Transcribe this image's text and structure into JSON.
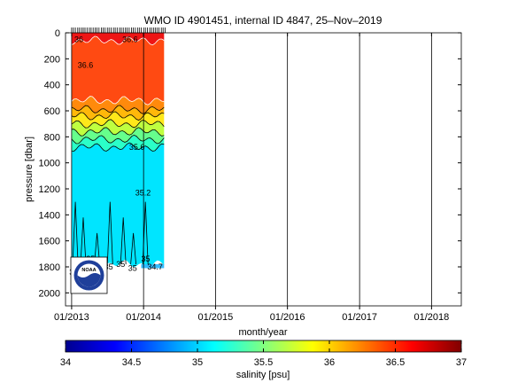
{
  "chart_data": {
    "type": "heatmap",
    "title": "WMO ID 4901451, internal ID 4847, 25–Nov–2019",
    "xlabel": "month/year",
    "ylabel": "pressure [dbar]",
    "x_ticks": [
      "01/2013",
      "01/2014",
      "01/2015",
      "01/2016",
      "01/2017",
      "01/2018"
    ],
    "x_range": [
      "2012-12-01",
      "2018-06-01"
    ],
    "y_ticks": [
      0,
      200,
      400,
      600,
      800,
      1000,
      1200,
      1400,
      1600,
      1800,
      2000
    ],
    "y_range": [
      0,
      2100
    ],
    "y_reversed": true,
    "profile_dates": [
      "2013-01",
      "2013-02",
      "2013-03",
      "2013-04",
      "2013-05",
      "2013-06",
      "2013-07",
      "2013-08",
      "2013-09",
      "2013-10",
      "2013-11",
      "2013-12",
      "2014-01",
      "2014-02",
      "2014-03",
      "2014-04"
    ],
    "grid": true,
    "colorbar": {
      "label": "salinity [psu]",
      "min": 34,
      "max": 37,
      "ticks": [
        34,
        34.5,
        35,
        35.5,
        36,
        36.5,
        37
      ],
      "colors": [
        "#00008f",
        "#0000ff",
        "#0080ff",
        "#00ffff",
        "#80ff80",
        "#ffff00",
        "#ff8000",
        "#ff0000",
        "#800000"
      ]
    },
    "salinity_bands": [
      {
        "label": ">36.6",
        "pressure_range": [
          0,
          60
        ],
        "color": "#ee1515"
      },
      {
        "label": "36.4–36.6",
        "pressure_range": [
          60,
          520
        ],
        "color": "#ff4a12"
      },
      {
        "label": "36.2–36.4",
        "pressure_range": [
          520,
          590
        ],
        "color": "#ff8a0c"
      },
      {
        "label": "36.0–36.2",
        "pressure_range": [
          590,
          640
        ],
        "color": "#ffb80a"
      },
      {
        "label": "35.8–36.0",
        "pressure_range": [
          640,
          700
        ],
        "color": "#ffe81a"
      },
      {
        "label": "35.6–35.8",
        "pressure_range": [
          700,
          760
        ],
        "color": "#bfff40"
      },
      {
        "label": "35.4–35.6",
        "pressure_range": [
          760,
          820
        ],
        "color": "#66ff8c"
      },
      {
        "label": "35.2–35.4",
        "pressure_range": [
          820,
          880
        ],
        "color": "#2bffc8"
      },
      {
        "label": "35.0–35.2",
        "pressure_range": [
          880,
          1780
        ],
        "color": "#00e5ff"
      }
    ],
    "contour_labels": [
      "36",
      "36.6",
      "36.6",
      "35.6",
      "35.2",
      "35",
      "35",
      "35",
      "35",
      "35",
      "35",
      "34.7"
    ]
  },
  "logo": {
    "text": "NOAA"
  }
}
